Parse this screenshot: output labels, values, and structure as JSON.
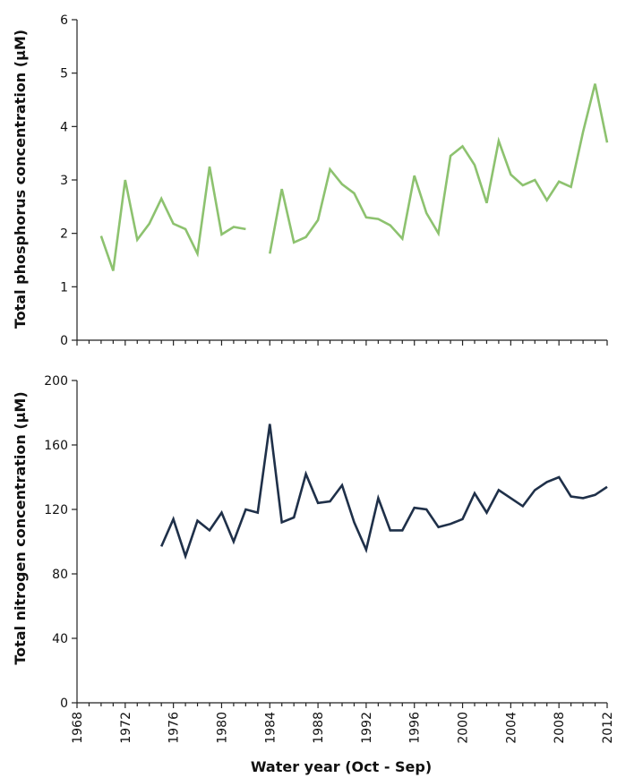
{
  "chart_data": [
    {
      "type": "line",
      "ylabel": "Total phosphorus concentration (µM)",
      "xlabel": "",
      "ylim": [
        0,
        6
      ],
      "yticks": [
        "0",
        "1",
        "2",
        "3",
        "4",
        "5",
        "6"
      ],
      "xlim": [
        1968,
        2012
      ],
      "grid": false,
      "series": [
        {
          "color": "#8dc26f",
          "points": [
            [
              1970,
              1.95
            ],
            [
              1971,
              1.3
            ],
            [
              1972,
              3.0
            ],
            [
              1973,
              1.88
            ],
            [
              1974,
              2.18
            ],
            [
              1975,
              2.65
            ],
            [
              1976,
              2.18
            ],
            [
              1977,
              2.08
            ],
            [
              1978,
              1.62
            ],
            [
              1979,
              3.25
            ],
            [
              1980,
              1.98
            ],
            [
              1981,
              2.12
            ],
            [
              1982,
              2.08
            ],
            [
              1983,
              null
            ],
            [
              1984,
              1.62
            ],
            [
              1985,
              2.83
            ],
            [
              1986,
              1.83
            ],
            [
              1987,
              1.93
            ],
            [
              1988,
              2.25
            ],
            [
              1989,
              3.2
            ],
            [
              1990,
              2.92
            ],
            [
              1991,
              2.75
            ],
            [
              1992,
              2.3
            ],
            [
              1993,
              2.27
            ],
            [
              1994,
              2.15
            ],
            [
              1995,
              1.9
            ],
            [
              1996,
              3.08
            ],
            [
              1997,
              2.38
            ],
            [
              1998,
              2.0
            ],
            [
              1999,
              3.45
            ],
            [
              2000,
              3.63
            ],
            [
              2001,
              3.28
            ],
            [
              2002,
              2.57
            ],
            [
              2003,
              3.73
            ],
            [
              2004,
              3.1
            ],
            [
              2005,
              2.9
            ],
            [
              2006,
              3.0
            ],
            [
              2007,
              2.62
            ],
            [
              2008,
              2.97
            ],
            [
              2009,
              2.87
            ],
            [
              2010,
              3.9
            ],
            [
              2011,
              4.8
            ],
            [
              2012,
              3.7
            ]
          ]
        }
      ]
    },
    {
      "type": "line",
      "ylabel": "Total nitrogen concentration (µM)",
      "xlabel": "Water year (Oct - Sep)",
      "ylim": [
        0,
        200
      ],
      "yticks": [
        "0",
        "40",
        "80",
        "120",
        "160",
        "200"
      ],
      "xlim": [
        1968,
        2012
      ],
      "xticks": [
        "1968",
        "1972",
        "1976",
        "1980",
        "1984",
        "1988",
        "1992",
        "1996",
        "2000",
        "2004",
        "2008",
        "2012"
      ],
      "grid": false,
      "series": [
        {
          "color": "#1f3049",
          "points": [
            [
              1975,
              97
            ],
            [
              1976,
              114
            ],
            [
              1977,
              91
            ],
            [
              1978,
              113
            ],
            [
              1979,
              107
            ],
            [
              1980,
              118
            ],
            [
              1981,
              100
            ],
            [
              1982,
              120
            ],
            [
              1983,
              118
            ],
            [
              1984,
              173
            ],
            [
              1985,
              112
            ],
            [
              1986,
              115
            ],
            [
              1987,
              142
            ],
            [
              1988,
              124
            ],
            [
              1989,
              125
            ],
            [
              1990,
              135
            ],
            [
              1991,
              112
            ],
            [
              1992,
              95
            ],
            [
              1993,
              127
            ],
            [
              1994,
              107
            ],
            [
              1995,
              107
            ],
            [
              1996,
              121
            ],
            [
              1997,
              120
            ],
            [
              1998,
              109
            ],
            [
              1999,
              111
            ],
            [
              2000,
              114
            ],
            [
              2001,
              130
            ],
            [
              2002,
              118
            ],
            [
              2003,
              132
            ],
            [
              2004,
              127
            ],
            [
              2005,
              122
            ],
            [
              2006,
              132
            ],
            [
              2007,
              137
            ],
            [
              2008,
              140
            ],
            [
              2009,
              128
            ],
            [
              2010,
              127
            ],
            [
              2011,
              129
            ],
            [
              2012,
              134
            ]
          ]
        }
      ]
    }
  ]
}
